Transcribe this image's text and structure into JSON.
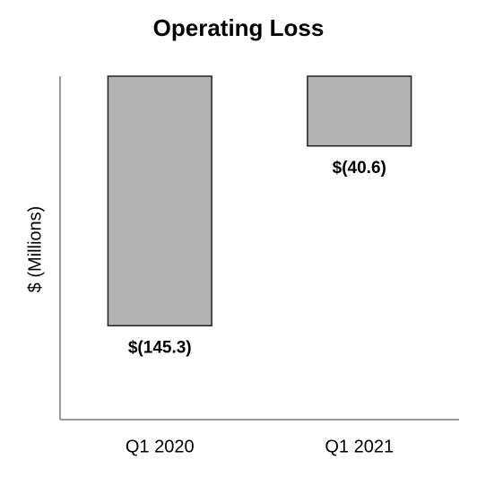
{
  "chart_data": {
    "type": "bar",
    "title": "Operating Loss",
    "y_label": "$ (Millions)",
    "categories": [
      "Q1 2020",
      "Q1 2021"
    ],
    "values": [
      -145.3,
      -40.6
    ],
    "value_labels": [
      "$(145.3)",
      "$(40.6)"
    ],
    "color": "#b3b3b3",
    "ylim": [
      -200,
      0
    ]
  }
}
